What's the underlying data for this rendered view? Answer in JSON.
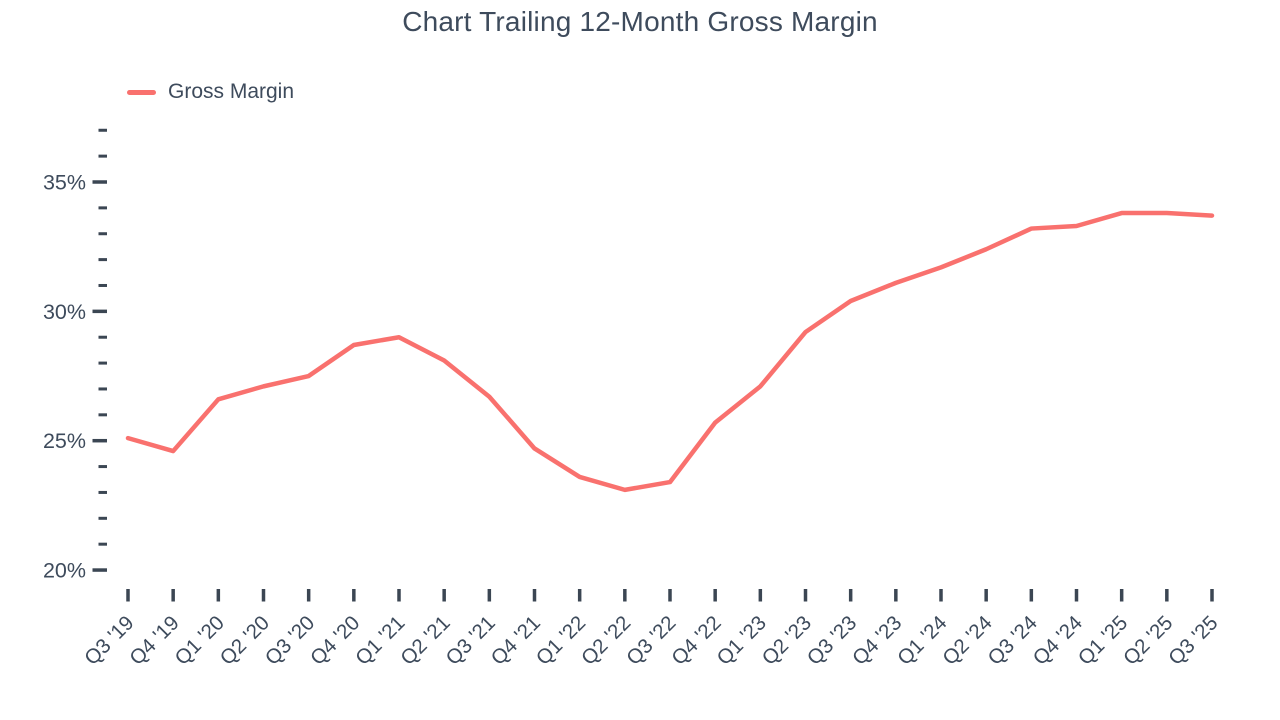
{
  "header": {
    "title": "Chart Trailing 12-Month Gross Margin"
  },
  "legend": {
    "items": [
      {
        "label": "Gross Margin",
        "color": "#f9716e"
      }
    ]
  },
  "chart_data": {
    "type": "line",
    "title": "Chart Trailing 12-Month Gross Margin",
    "xlabel": "",
    "ylabel": "",
    "grid": false,
    "legend_position": "top-left",
    "categories": [
      "Q3 '19",
      "Q4 '19",
      "Q1 '20",
      "Q2 '20",
      "Q3 '20",
      "Q4 '20",
      "Q1 '21",
      "Q2 '21",
      "Q3 '21",
      "Q4 '21",
      "Q1 '22",
      "Q2 '22",
      "Q3 '22",
      "Q4 '22",
      "Q1 '23",
      "Q2 '23",
      "Q3 '23",
      "Q4 '23",
      "Q1 '24",
      "Q2 '24",
      "Q3 '24",
      "Q4 '24",
      "Q1 '25",
      "Q2 '25",
      "Q3 '25"
    ],
    "series": [
      {
        "name": "Gross Margin",
        "color": "#f9716e",
        "values": [
          25.1,
          24.6,
          26.6,
          27.1,
          27.5,
          28.7,
          29.0,
          28.1,
          26.7,
          24.7,
          23.6,
          23.1,
          23.4,
          25.7,
          27.1,
          29.2,
          30.4,
          31.1,
          31.7,
          32.4,
          33.2,
          33.3,
          33.8,
          33.8,
          33.7
        ]
      }
    ],
    "y_axis": {
      "range": [
        20,
        37
      ],
      "major_ticks": [
        {
          "value": 35,
          "label": "35%"
        },
        {
          "value": 30,
          "label": "30%"
        },
        {
          "value": 25,
          "label": "25%"
        },
        {
          "value": 20,
          "label": "20%"
        }
      ],
      "minor_tick_step": 1,
      "unit": "%"
    },
    "style": {
      "text_color": "#3e4b5c",
      "tick_color": "#3b4653",
      "line_color": "#f9716e",
      "background": "#ffffff"
    }
  }
}
